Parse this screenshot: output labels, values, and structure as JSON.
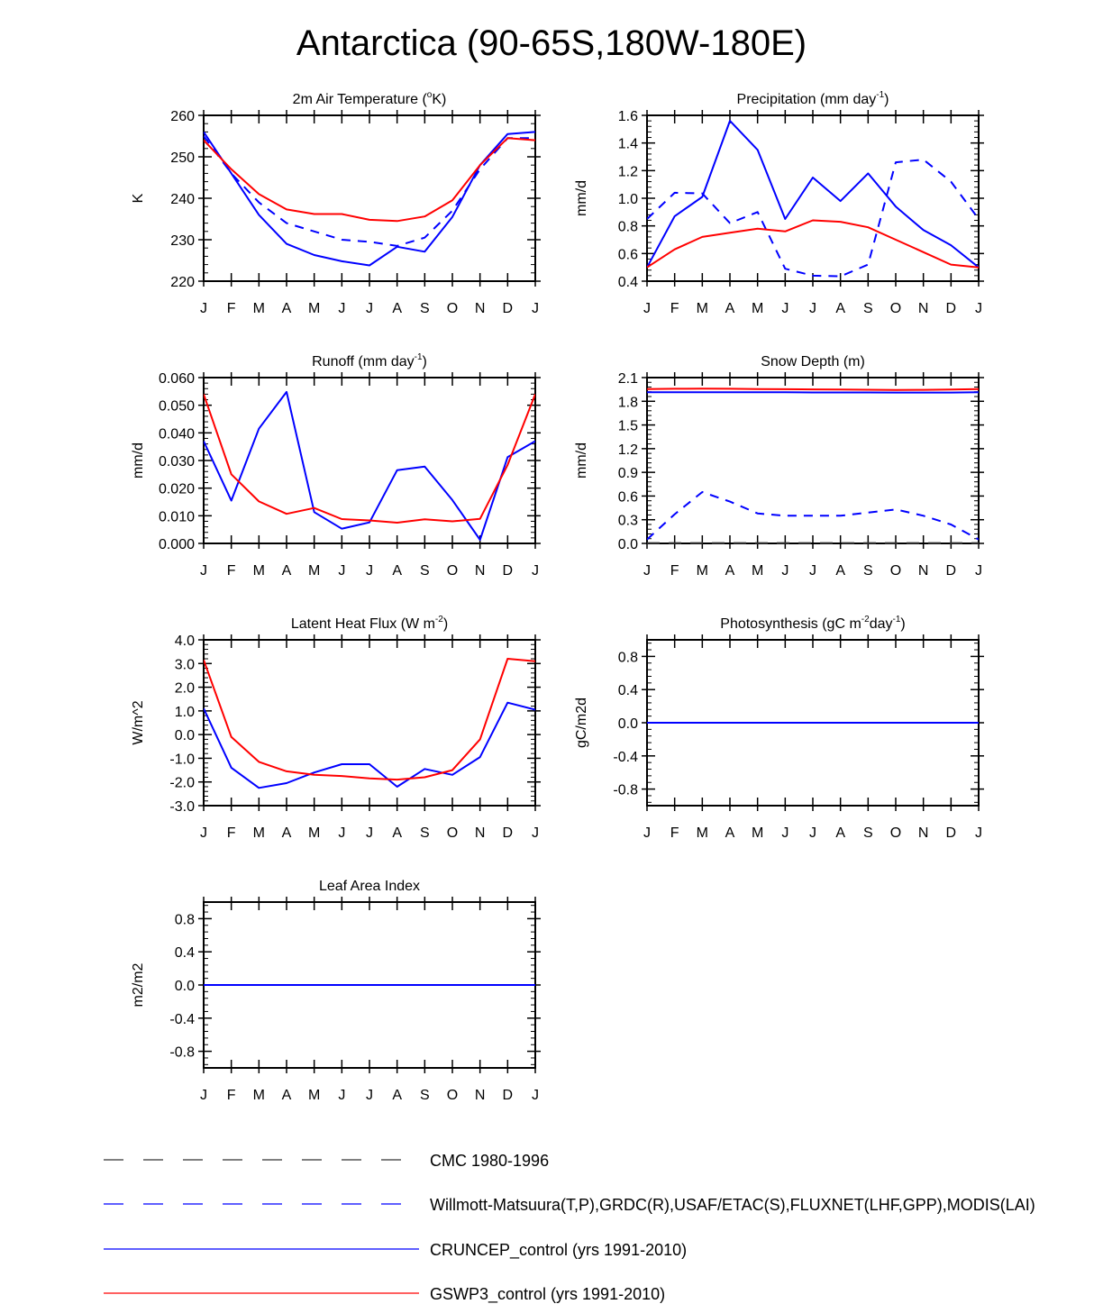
{
  "title": "Antarctica (90-65S,180W-180E)",
  "months": [
    "J",
    "F",
    "M",
    "A",
    "M",
    "J",
    "J",
    "A",
    "S",
    "O",
    "N",
    "D",
    "J"
  ],
  "colors": {
    "cmc": "#333333",
    "obs": "#0000ff",
    "cruncep": "#0000ff",
    "gswp3": "#ff0000"
  },
  "legend": [
    {
      "key": "cmc",
      "label": "CMC 1980-1996",
      "style": "dash-long"
    },
    {
      "key": "obs",
      "label": "Willmott-Matsuura(T,P),GRDC(R),USAF/ETAC(S),FLUXNET(LHF,GPP),MODIS(LAI)",
      "style": "dash-long"
    },
    {
      "key": "cruncep",
      "label": "CRUNCEP_control (yrs 1991-2010)",
      "style": "solid"
    },
    {
      "key": "gswp3",
      "label": "GSWP3_control (yrs 1991-2010)",
      "style": "solid"
    }
  ],
  "chart_data": [
    {
      "id": "temp",
      "type": "line",
      "title": "2m Air Temperature (",
      "title_sup": "o",
      "title_tail": "K)",
      "ylabel": "K",
      "ylim": [
        220,
        260
      ],
      "yticks": [
        "220",
        "230",
        "240",
        "250",
        "260"
      ],
      "ytick_values": [
        220,
        230,
        240,
        250,
        260
      ],
      "series": [
        {
          "name": "Willmott-Matsuura",
          "key": "obs",
          "dash": true,
          "values": [
            255,
            246,
            239,
            234,
            232,
            230,
            229.5,
            228.5,
            230.5,
            237,
            247,
            254.5,
            254.5
          ]
        },
        {
          "name": "CRUNCEP_control",
          "key": "cruncep",
          "values": [
            256,
            246,
            236,
            229,
            226.3,
            224.8,
            223.8,
            228.3,
            227.1,
            235.5,
            248,
            255.5,
            256
          ]
        },
        {
          "name": "GSWP3_control",
          "key": "gswp3",
          "values": [
            254,
            247,
            241,
            237.3,
            236.2,
            236.2,
            234.8,
            234.5,
            235.6,
            239.5,
            248,
            254.5,
            254
          ]
        }
      ]
    },
    {
      "id": "precip",
      "type": "line",
      "title": "Precipitation (mm day",
      "title_sup": "-1",
      "title_tail": ")",
      "ylabel": "mm/d",
      "ylim": [
        0.4,
        1.6
      ],
      "yticks": [
        "0.4",
        "0.6",
        "0.8",
        "1.0",
        "1.2",
        "1.4",
        "1.6"
      ],
      "ytick_values": [
        0.4,
        0.6,
        0.8,
        1.0,
        1.2,
        1.4,
        1.6
      ],
      "series": [
        {
          "name": "Willmott-Matsuura",
          "key": "obs",
          "dash": true,
          "values": [
            0.85,
            1.04,
            1.035,
            0.82,
            0.9,
            0.49,
            0.44,
            0.435,
            0.52,
            1.26,
            1.28,
            1.12,
            0.85
          ]
        },
        {
          "name": "CRUNCEP_control",
          "key": "cruncep",
          "values": [
            0.5,
            0.87,
            1.01,
            1.56,
            1.35,
            0.85,
            1.15,
            0.98,
            1.18,
            0.94,
            0.77,
            0.66,
            0.5
          ]
        },
        {
          "name": "GSWP3_control",
          "key": "gswp3",
          "values": [
            0.5,
            0.63,
            0.72,
            0.75,
            0.78,
            0.76,
            0.84,
            0.83,
            0.79,
            0.7,
            0.61,
            0.52,
            0.5
          ]
        }
      ]
    },
    {
      "id": "runoff",
      "type": "line",
      "title": "Runoff (mm day",
      "title_sup": "-1",
      "title_tail": ")",
      "ylabel": "mm/d",
      "ylim": [
        0.0,
        0.06
      ],
      "yticks": [
        "0.000",
        "0.010",
        "0.020",
        "0.030",
        "0.040",
        "0.050",
        "0.060"
      ],
      "ytick_values": [
        0,
        0.01,
        0.02,
        0.03,
        0.04,
        0.05,
        0.06
      ],
      "series": [
        {
          "name": "CRUNCEP_control",
          "key": "cruncep",
          "values": [
            0.037,
            0.0155,
            0.0415,
            0.0548,
            0.0113,
            0.0053,
            0.0076,
            0.0265,
            0.0278,
            0.0157,
            0.0013,
            0.0312,
            0.037
          ]
        },
        {
          "name": "GSWP3_control",
          "key": "gswp3",
          "values": [
            0.054,
            0.025,
            0.0152,
            0.0107,
            0.0128,
            0.0088,
            0.0083,
            0.0075,
            0.0087,
            0.008,
            0.0089,
            0.0284,
            0.054
          ]
        }
      ]
    },
    {
      "id": "snow",
      "type": "line",
      "title": "Snow Depth (m)",
      "title_sup": "",
      "title_tail": "",
      "ylabel": "mm/d",
      "ylim": [
        0.0,
        2.1
      ],
      "yticks": [
        "0.0",
        "0.3",
        "0.6",
        "0.9",
        "1.2",
        "1.5",
        "1.8",
        "2.1"
      ],
      "ytick_values": [
        0,
        0.3,
        0.6,
        0.9,
        1.2,
        1.5,
        1.8,
        2.1
      ],
      "series": [
        {
          "name": "CMC 1980-1996",
          "key": "cmc",
          "dash": true,
          "values": [
            0.005,
            0.005,
            0.005,
            0.005,
            0.005,
            0.005,
            0.005,
            0.005,
            0.005,
            0.005,
            0.005,
            0.005,
            0.005
          ]
        },
        {
          "name": "USAF/ETAC",
          "key": "obs",
          "dash": true,
          "values": [
            0.05,
            0.37,
            0.65,
            0.53,
            0.38,
            0.35,
            0.35,
            0.35,
            0.39,
            0.43,
            0.35,
            0.24,
            0.05
          ]
        },
        {
          "name": "CRUNCEP_control",
          "key": "cruncep",
          "values": [
            1.915,
            1.915,
            1.915,
            1.915,
            1.915,
            1.915,
            1.912,
            1.912,
            1.912,
            1.91,
            1.91,
            1.91,
            1.915
          ]
        },
        {
          "name": "GSWP3_control",
          "key": "gswp3",
          "values": [
            1.955,
            1.958,
            1.96,
            1.958,
            1.955,
            1.953,
            1.95,
            1.948,
            1.946,
            1.944,
            1.945,
            1.948,
            1.955
          ]
        }
      ]
    },
    {
      "id": "lhf",
      "type": "line",
      "title": "Latent Heat Flux (W m",
      "title_sup": "-2",
      "title_tail": ")",
      "ylabel": "W/m^2",
      "ylim": [
        -3.0,
        4.0
      ],
      "yticks": [
        "-3.0",
        "-2.0",
        "-1.0",
        "0.0",
        "1.0",
        "2.0",
        "3.0",
        "4.0"
      ],
      "ytick_values": [
        -3,
        -2,
        -1,
        0,
        1,
        2,
        3,
        4
      ],
      "series": [
        {
          "name": "CRUNCEP_control",
          "key": "cruncep",
          "values": [
            1.1,
            -1.4,
            -2.25,
            -2.05,
            -1.6,
            -1.25,
            -1.25,
            -2.2,
            -1.45,
            -1.7,
            -0.95,
            1.35,
            1.05
          ]
        },
        {
          "name": "GSWP3_control",
          "key": "gswp3",
          "values": [
            3.15,
            -0.1,
            -1.15,
            -1.55,
            -1.7,
            -1.75,
            -1.85,
            -1.9,
            -1.8,
            -1.5,
            -0.2,
            3.2,
            3.1
          ]
        }
      ]
    },
    {
      "id": "gpp",
      "type": "line",
      "title": "Photosynthesis (gC m",
      "title_sup": "-2",
      "title_mid": "day",
      "title_sup2": "-1",
      "title_tail": ")",
      "ylabel": "gC/m2d",
      "ylim": [
        -1.0,
        1.0
      ],
      "yticks": [
        "-0.8",
        "-0.4",
        "0.0",
        "0.4",
        "0.8"
      ],
      "ytick_values": [
        -0.8,
        -0.4,
        0,
        0.4,
        0.8
      ],
      "series": [
        {
          "name": "GSWP3_control",
          "key": "gswp3",
          "values": [
            0,
            0,
            0,
            0,
            0,
            0,
            0,
            0,
            0,
            0,
            0,
            0,
            0
          ]
        },
        {
          "name": "CRUNCEP_control",
          "key": "cruncep",
          "values": [
            0,
            0,
            0,
            0,
            0,
            0,
            0,
            0,
            0,
            0,
            0,
            0,
            0
          ]
        }
      ]
    },
    {
      "id": "lai",
      "type": "line",
      "title": "Leaf Area Index",
      "title_sup": "",
      "title_tail": "",
      "ylabel": "m2/m2",
      "ylim": [
        -1.0,
        1.0
      ],
      "yticks": [
        "-0.8",
        "-0.4",
        "0.0",
        "0.4",
        "0.8"
      ],
      "ytick_values": [
        -0.8,
        -0.4,
        0,
        0.4,
        0.8
      ],
      "series": [
        {
          "name": "GSWP3_control",
          "key": "gswp3",
          "values": [
            0,
            0,
            0,
            0,
            0,
            0,
            0,
            0,
            0,
            0,
            0,
            0,
            0
          ]
        },
        {
          "name": "CRUNCEP_control",
          "key": "cruncep",
          "values": [
            0,
            0,
            0,
            0,
            0,
            0,
            0,
            0,
            0,
            0,
            0,
            0,
            0
          ]
        }
      ]
    }
  ]
}
